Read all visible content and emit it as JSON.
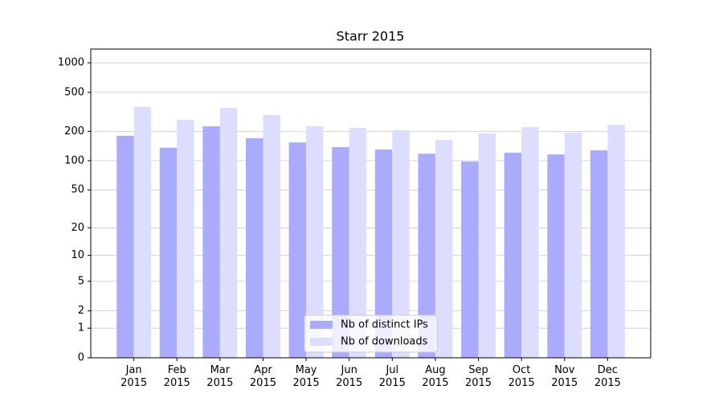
{
  "chart_data": {
    "type": "bar",
    "title": "Starr 2015",
    "categories": [
      "Jan\n2015",
      "Feb\n2015",
      "Mar\n2015",
      "Apr\n2015",
      "May\n2015",
      "Jun\n2015",
      "Jul\n2015",
      "Aug\n2015",
      "Sep\n2015",
      "Oct\n2015",
      "Nov\n2015",
      "Dec\n2015"
    ],
    "series": [
      {
        "name": "Nb of distinct IPs",
        "color": "#aaaaff",
        "values": [
          180,
          136,
          225,
          170,
          154,
          138,
          130,
          118,
          98,
          121,
          116,
          128
        ]
      },
      {
        "name": "Nb of downloads",
        "color": "#ddddff",
        "values": [
          355,
          262,
          348,
          294,
          225,
          217,
          205,
          163,
          190,
          221,
          194,
          234
        ]
      }
    ],
    "yscale": "log1p",
    "ylim": [
      0,
      1380
    ],
    "yticks": [
      0,
      1,
      2,
      5,
      10,
      20,
      50,
      100,
      200,
      500,
      1000
    ],
    "grid": true,
    "legend": "lower center"
  }
}
